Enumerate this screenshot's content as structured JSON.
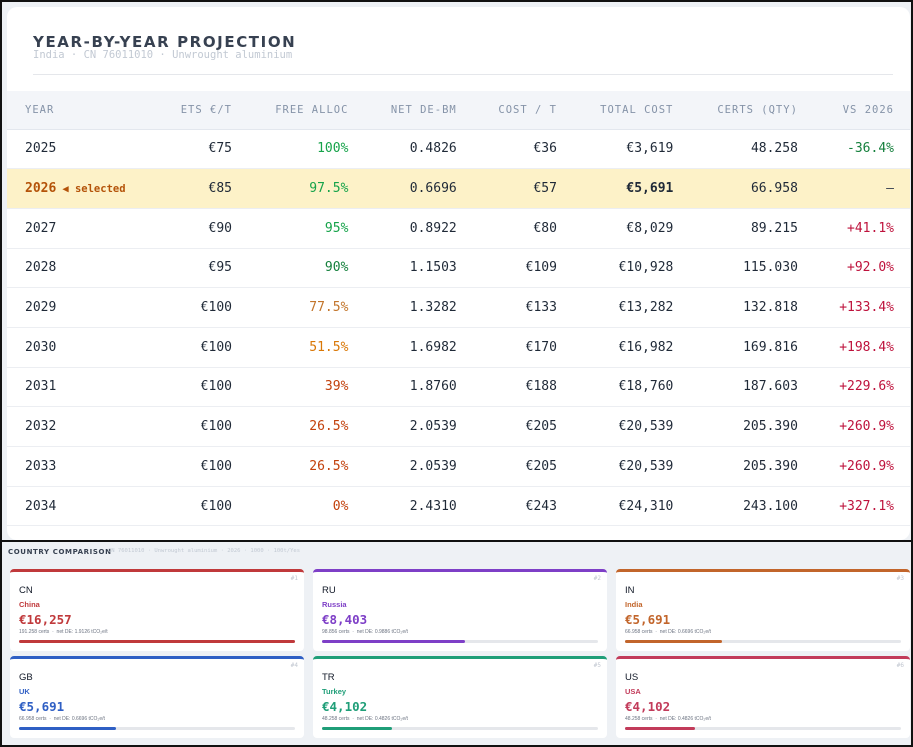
{
  "projection": {
    "title": "YEAR-BY-YEAR PROJECTION",
    "subtitle": "India · CN 76011010 · Unwrought aluminium",
    "columns": [
      "YEAR",
      "ETS €/T",
      "FREE ALLOC",
      "NET DE-BM",
      "COST / T",
      "TOTAL COST",
      "CERTS (QTY)",
      "VS 2026"
    ],
    "selected_tag": "◀ selected",
    "rows": [
      {
        "year": "2025",
        "ets": "€75",
        "free_alloc": "100%",
        "net_de": "0.4826",
        "cost_t": "€36",
        "total": "€3,619",
        "certs": "48.258",
        "vs": "-36.4%",
        "alloc_color": "#16a34a",
        "vs_color": "#15803d"
      },
      {
        "year": "2026",
        "ets": "€85",
        "free_alloc": "97.5%",
        "net_de": "0.6696",
        "cost_t": "€57",
        "total": "€5,691",
        "certs": "66.958",
        "vs": "—",
        "alloc_color": "#16a34a",
        "vs_color": "#374151"
      },
      {
        "year": "2027",
        "ets": "€90",
        "free_alloc": "95%",
        "net_de": "0.8922",
        "cost_t": "€80",
        "total": "€8,029",
        "certs": "89.215",
        "vs": "+41.1%",
        "alloc_color": "#16a34a",
        "vs_color": "#be123c"
      },
      {
        "year": "2028",
        "ets": "€95",
        "free_alloc": "90%",
        "net_de": "1.1503",
        "cost_t": "€109",
        "total": "€10,928",
        "certs": "115.030",
        "vs": "+92.0%",
        "alloc_color": "#15803d",
        "vs_color": "#be123c"
      },
      {
        "year": "2029",
        "ets": "€100",
        "free_alloc": "77.5%",
        "net_de": "1.3282",
        "cost_t": "€133",
        "total": "€13,282",
        "certs": "132.818",
        "vs": "+133.4%",
        "alloc_color": "#c2752b",
        "vs_color": "#be123c"
      },
      {
        "year": "2030",
        "ets": "€100",
        "free_alloc": "51.5%",
        "net_de": "1.6982",
        "cost_t": "€170",
        "total": "€16,982",
        "certs": "169.816",
        "vs": "+198.4%",
        "alloc_color": "#d97706",
        "vs_color": "#be123c"
      },
      {
        "year": "2031",
        "ets": "€100",
        "free_alloc": "39%",
        "net_de": "1.8760",
        "cost_t": "€188",
        "total": "€18,760",
        "certs": "187.603",
        "vs": "+229.6%",
        "alloc_color": "#c2410c",
        "vs_color": "#be123c"
      },
      {
        "year": "2032",
        "ets": "€100",
        "free_alloc": "26.5%",
        "net_de": "2.0539",
        "cost_t": "€205",
        "total": "€20,539",
        "certs": "205.390",
        "vs": "+260.9%",
        "alloc_color": "#c2410c",
        "vs_color": "#be123c"
      },
      {
        "year": "2033",
        "ets": "€100",
        "free_alloc": "26.5%",
        "net_de": "2.0539",
        "cost_t": "€205",
        "total": "€20,539",
        "certs": "205.390",
        "vs": "+260.9%",
        "alloc_color": "#c2410c",
        "vs_color": "#be123c"
      },
      {
        "year": "2034",
        "ets": "€100",
        "free_alloc": "0%",
        "net_de": "2.4310",
        "cost_t": "€243",
        "total": "€24,310",
        "certs": "243.100",
        "vs": "+327.1%",
        "alloc_color": "#c2410c",
        "vs_color": "#be123c"
      }
    ],
    "selected_index": 1
  },
  "comparison": {
    "title": "COUNTRY COMPARISON",
    "subtitle": "CN 76011010 · Unwrought aluminium · 2026 · 1000 · 100t/Yes",
    "cards": [
      {
        "rank": "#1",
        "code": "CN",
        "name": "China",
        "cost": "€16,257",
        "certs": "191.258 certs",
        "net": "net DE: 1.9126 tCO₂e/t",
        "color": "#c0393b",
        "share": 1.0
      },
      {
        "rank": "#2",
        "code": "RU",
        "name": "Russia",
        "cost": "€8,403",
        "certs": "98.856 certs",
        "net": "net DE: 0.9886 tCO₂e/t",
        "color": "#7e3fc7",
        "share": 0.517
      },
      {
        "rank": "#3",
        "code": "IN",
        "name": "India",
        "cost": "€5,691",
        "certs": "66.958 certs",
        "net": "net DE: 0.6696 tCO₂e/t",
        "color": "#c2652b",
        "share": 0.35
      },
      {
        "rank": "#4",
        "code": "GB",
        "name": "UK",
        "cost": "€5,691",
        "certs": "66.958 certs",
        "net": "net DE: 0.6696 tCO₂e/t",
        "color": "#2f5fc4",
        "share": 0.35
      },
      {
        "rank": "#5",
        "code": "TR",
        "name": "Turkey",
        "cost": "€4,102",
        "certs": "48.258 certs",
        "net": "net DE: 0.4826 tCO₂e/t",
        "color": "#1f9e78",
        "share": 0.252
      },
      {
        "rank": "#6",
        "code": "US",
        "name": "USA",
        "cost": "€4,102",
        "certs": "48.258 certs",
        "net": "net DE: 0.4826 tCO₂e/t",
        "color": "#c23b5a",
        "share": 0.252
      }
    ]
  }
}
